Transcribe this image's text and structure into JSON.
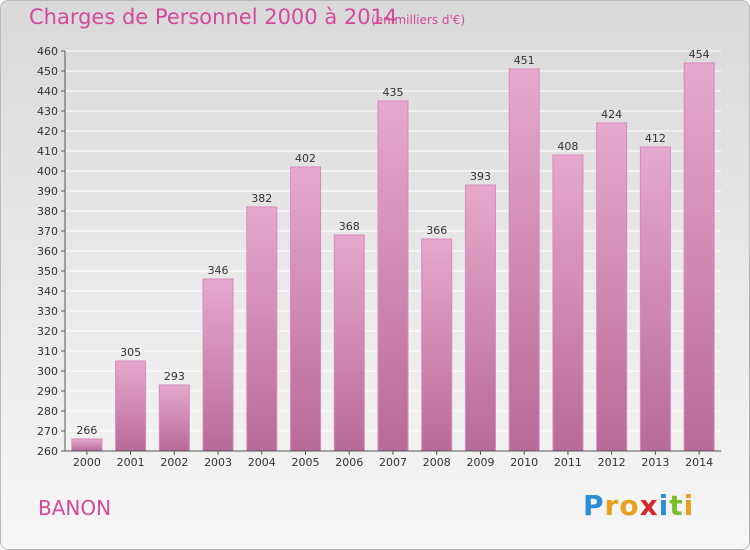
{
  "title": "Charges de Personnel 2000 à 2014",
  "subtitle": "(en milliers d'€)",
  "location": "BANON",
  "brand": {
    "letters": [
      "P",
      "r",
      "o",
      "x",
      "i",
      "t",
      "i"
    ],
    "colors": [
      "#2b8fd6",
      "#e8a020",
      "#e8a020",
      "#d42a2a",
      "#2b8fd6",
      "#7cbf2e",
      "#e8a020"
    ]
  },
  "colors": {
    "bar": "#d78ab8",
    "bar_light": "#e6a9cd",
    "bar_dark": "#b86a98",
    "text_accent": "#d4499a"
  },
  "chart_data": {
    "type": "bar",
    "categories": [
      "2000",
      "2001",
      "2002",
      "2003",
      "2004",
      "2005",
      "2006",
      "2007",
      "2008",
      "2009",
      "2010",
      "2011",
      "2012",
      "2013",
      "2014"
    ],
    "values": [
      266,
      305,
      293,
      346,
      382,
      402,
      368,
      435,
      366,
      393,
      451,
      408,
      424,
      412,
      454
    ],
    "ylim": [
      260,
      460
    ],
    "yticks": [
      260,
      270,
      280,
      290,
      300,
      310,
      320,
      330,
      340,
      350,
      360,
      370,
      380,
      390,
      400,
      410,
      420,
      430,
      440,
      450,
      460
    ],
    "grid": true,
    "data_labels": true
  }
}
